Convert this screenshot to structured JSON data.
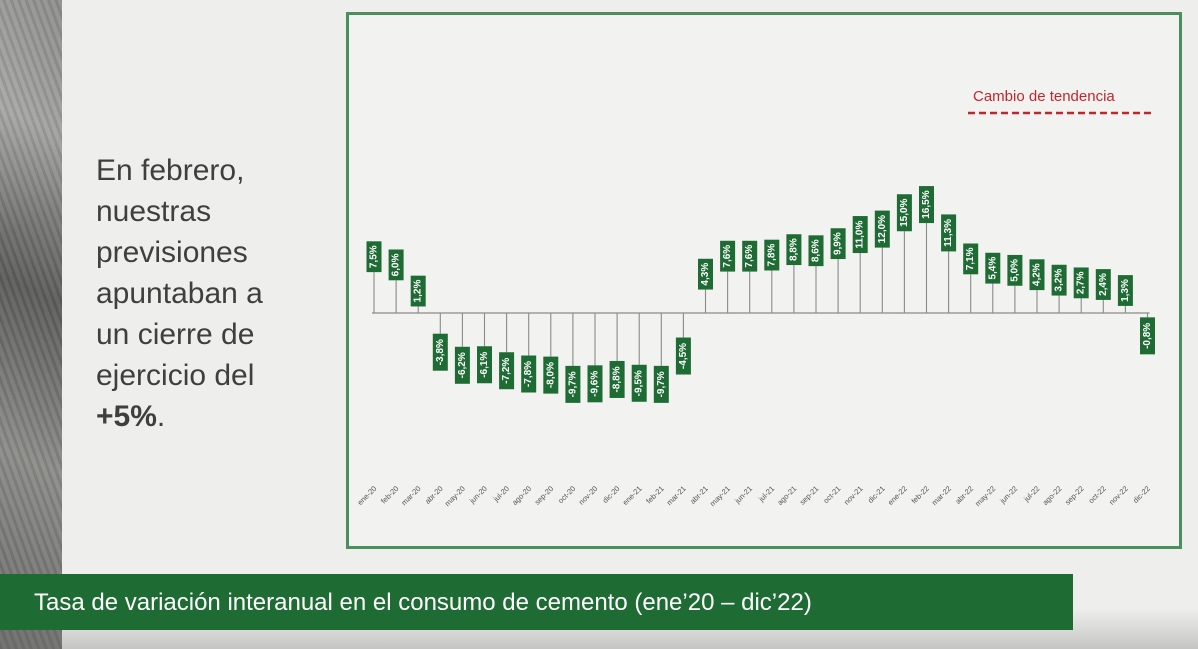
{
  "side_text": {
    "line1": "En febrero,",
    "line2": "nuestras",
    "line3": "previsiones",
    "line4": "apuntaban a",
    "line5": "un cierre de",
    "line6": "ejercicio del",
    "highlight": "+5%",
    "tail": "."
  },
  "caption": "Tasa de variación interanual en el consumo de cemento (ene’20 – dic’22)",
  "colors": {
    "bar_label_bg": "#1e6b34",
    "frame": "#4a8f5c",
    "trend_line": "#c0272d",
    "caption_bg": "#1e6b34"
  },
  "chart_data": {
    "type": "bar",
    "categories": [
      "ene-20",
      "feb-20",
      "mar-20",
      "abr-20",
      "may-20",
      "jun-20",
      "jul-20",
      "ago-20",
      "sep-20",
      "oct-20",
      "nov-20",
      "dic-20",
      "ene-21",
      "feb-21",
      "mar-21",
      "abr-21",
      "may-21",
      "jun-21",
      "jul-21",
      "ago-21",
      "sep-21",
      "oct-21",
      "nov-21",
      "dic-21",
      "ene-22",
      "feb-22",
      "mar-22",
      "abr-22",
      "may-22",
      "jun-22",
      "jul-22",
      "ago-22",
      "sep-22",
      "oct-22",
      "nov-22",
      "dic-22"
    ],
    "values": [
      7.5,
      6.0,
      1.2,
      -3.8,
      -6.2,
      -6.1,
      -7.2,
      -7.8,
      -8.0,
      -9.7,
      -9.6,
      -8.8,
      -9.5,
      -9.7,
      -4.5,
      4.3,
      7.6,
      7.6,
      7.8,
      8.8,
      8.6,
      9.9,
      11.0,
      12.0,
      15.0,
      16.5,
      11.3,
      7.1,
      5.4,
      5.0,
      4.2,
      3.2,
      2.7,
      2.4,
      1.3,
      -0.8
    ],
    "labels": [
      "7,5%",
      "6,0%",
      "1,2%",
      "-3,8%",
      "-6,2%",
      "-6,1%",
      "-7,2%",
      "-7,8%",
      "-8,0%",
      "-9,7%",
      "-9,6%",
      "-8,8%",
      "-9,5%",
      "-9,7%",
      "-4,5%",
      "4,3%",
      "7,6%",
      "7,6%",
      "7,8%",
      "8,8%",
      "8,6%",
      "9,9%",
      "11,0%",
      "12,0%",
      "15,0%",
      "16,5%",
      "11,3%",
      "7,1%",
      "5,4%",
      "5,0%",
      "4,2%",
      "3,2%",
      "2,7%",
      "2,4%",
      "1,3%",
      "-0,8%"
    ],
    "annotation": "Cambio de tendencia",
    "ylim": [
      -10,
      17
    ],
    "grid": false
  }
}
